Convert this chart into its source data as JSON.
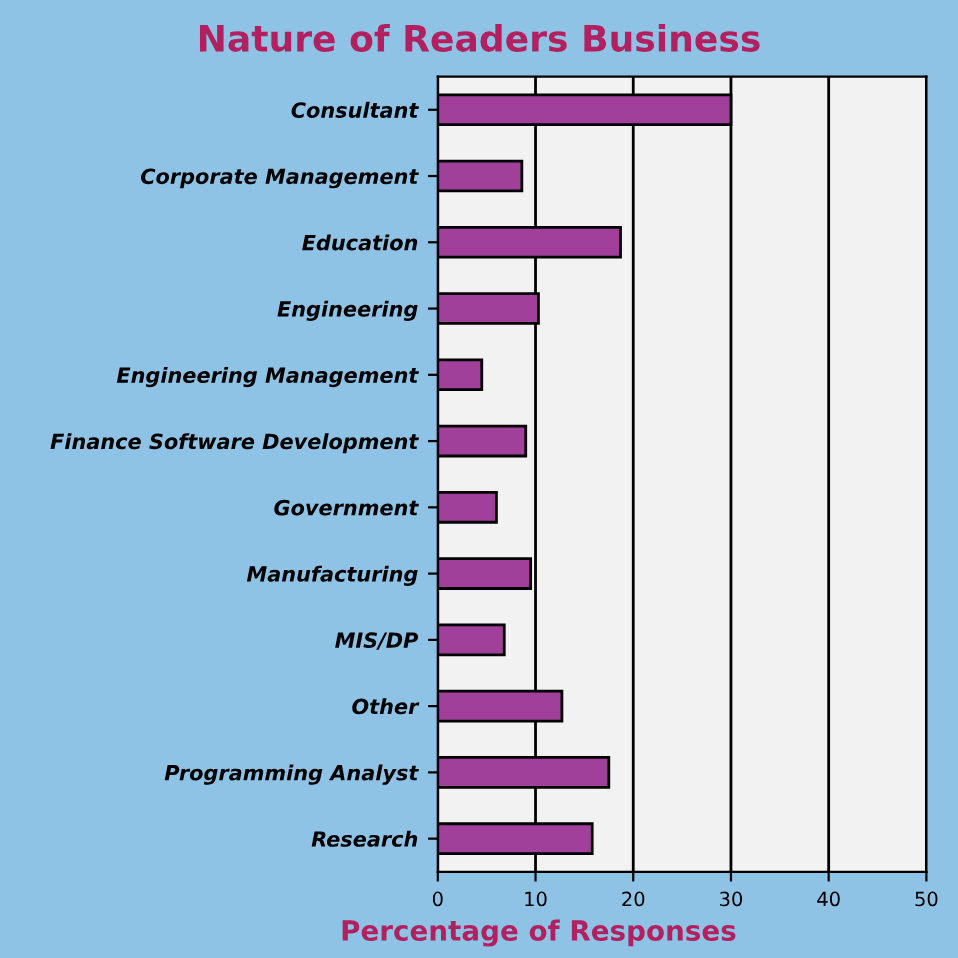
{
  "chart_data": {
    "type": "bar",
    "orientation": "horizontal",
    "title": "Nature of Readers Business",
    "xlabel": "Percentage of Responses",
    "categories": [
      "Consultant",
      "Corporate Management",
      "Education",
      "Engineering",
      "Engineering Management",
      "Finance Software Development",
      "Government",
      "Manufacturing",
      "MIS/DP",
      "Other",
      "Programming Analyst",
      "Research"
    ],
    "values": [
      30,
      8.6,
      18.7,
      10.3,
      4.5,
      9.0,
      6.0,
      9.5,
      6.8,
      12.7,
      17.5,
      15.8
    ],
    "color": "#a0409a",
    "xlim": [
      0,
      50
    ],
    "xticks": [
      0,
      10,
      20,
      30,
      40,
      50
    ],
    "grid": "x"
  }
}
